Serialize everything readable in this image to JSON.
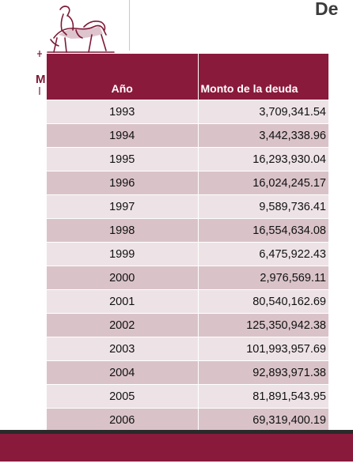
{
  "header": {
    "title_fragment": "De",
    "logo_letter": "M"
  },
  "table": {
    "headers": [
      "Año",
      "Monto de la deuda"
    ],
    "rows": [
      {
        "year": "1993",
        "amount": "3,709,341.54"
      },
      {
        "year": "1994",
        "amount": "3,442,338.96"
      },
      {
        "year": "1995",
        "amount": "16,293,930.04"
      },
      {
        "year": "1996",
        "amount": "16,024,245.17"
      },
      {
        "year": "1997",
        "amount": "9,589,736.41"
      },
      {
        "year": "1998",
        "amount": "16,554,634.08"
      },
      {
        "year": "1999",
        "amount": "6,475,922.43"
      },
      {
        "year": "2000",
        "amount": "2,976,569.11"
      },
      {
        "year": "2001",
        "amount": "80,540,162.69"
      },
      {
        "year": "2002",
        "amount": "125,350,942.38"
      },
      {
        "year": "2003",
        "amount": "101,993,957.69"
      },
      {
        "year": "2004",
        "amount": "92,893,971.38"
      },
      {
        "year": "2005",
        "amount": "81,891,543.95"
      },
      {
        "year": "2006",
        "amount": "69,319,400.19"
      }
    ]
  },
  "colors": {
    "accent": "#8a1a3c",
    "row_dark": "#d9c3c9",
    "row_light": "#ede3e6"
  },
  "icons": {
    "logo": "equestrian-statue-logo-icon"
  }
}
